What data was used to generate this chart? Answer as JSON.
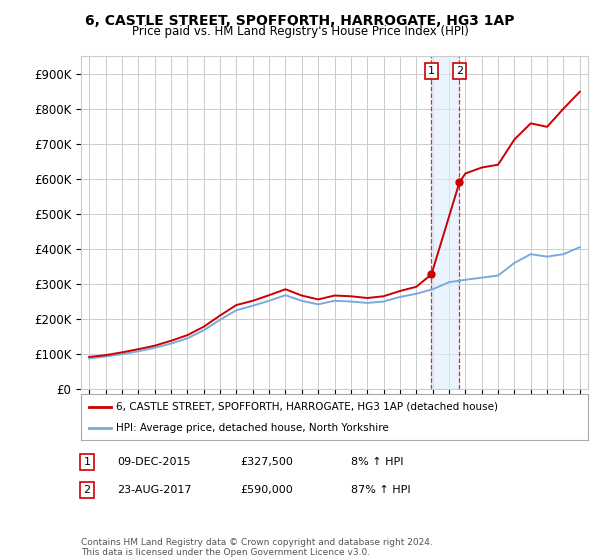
{
  "title": "6, CASTLE STREET, SPOFFORTH, HARROGATE, HG3 1AP",
  "subtitle": "Price paid vs. HM Land Registry's House Price Index (HPI)",
  "ylabel_ticks": [
    "£0",
    "£100K",
    "£200K",
    "£300K",
    "£400K",
    "£500K",
    "£600K",
    "£700K",
    "£800K",
    "£900K"
  ],
  "ytick_values": [
    0,
    100000,
    200000,
    300000,
    400000,
    500000,
    600000,
    700000,
    800000,
    900000
  ],
  "ylim": [
    0,
    950000
  ],
  "xlim_start": 1994.5,
  "xlim_end": 2025.5,
  "legend_line1": "6, CASTLE STREET, SPOFFORTH, HARROGATE, HG3 1AP (detached house)",
  "legend_line2": "HPI: Average price, detached house, North Yorkshire",
  "legend_color1": "#cc0000",
  "legend_color2": "#7aaadd",
  "transaction1_label": "1",
  "transaction1_date": "09-DEC-2015",
  "transaction1_price": "£327,500",
  "transaction1_hpi": "8% ↑ HPI",
  "transaction1_x": 2015.93,
  "transaction1_y": 327500,
  "transaction2_label": "2",
  "transaction2_date": "23-AUG-2017",
  "transaction2_price": "£590,000",
  "transaction2_hpi": "87% ↑ HPI",
  "transaction2_x": 2017.64,
  "transaction2_y": 590000,
  "footer": "Contains HM Land Registry data © Crown copyright and database right 2024.\nThis data is licensed under the Open Government Licence v3.0.",
  "bg_color": "#ffffff",
  "grid_color": "#cccccc",
  "highlight_fill": "#ddeeff",
  "highlight_alpha": 0.6,
  "hpi_years": [
    1995,
    1996,
    1997,
    1998,
    1999,
    2000,
    2001,
    2002,
    2003,
    2004,
    2005,
    2006,
    2007,
    2008,
    2009,
    2010,
    2011,
    2012,
    2013,
    2014,
    2015,
    2016,
    2017,
    2018,
    2019,
    2020,
    2021,
    2022,
    2023,
    2024,
    2025
  ],
  "hpi_values": [
    88000,
    93000,
    100000,
    108000,
    118000,
    130000,
    145000,
    168000,
    198000,
    225000,
    238000,
    252000,
    268000,
    252000,
    242000,
    252000,
    250000,
    246000,
    250000,
    263000,
    272000,
    285000,
    305000,
    312000,
    318000,
    324000,
    360000,
    385000,
    378000,
    385000,
    405000
  ],
  "red_years": [
    1995,
    1996,
    1997,
    1998,
    1999,
    2000,
    2001,
    2002,
    2003,
    2004,
    2005,
    2006,
    2007,
    2008,
    2009,
    2010,
    2011,
    2012,
    2013,
    2014,
    2015,
    2015.93,
    2017.64,
    2018,
    2019,
    2020,
    2021,
    2022,
    2023,
    2024,
    2025
  ],
  "red_values": [
    92000,
    97000,
    105000,
    114000,
    124000,
    138000,
    154000,
    178000,
    210000,
    240000,
    252000,
    268000,
    285000,
    267000,
    256000,
    267000,
    265000,
    260000,
    265000,
    280000,
    292000,
    327500,
    590000,
    615000,
    632000,
    640000,
    712000,
    758000,
    748000,
    800000,
    848000
  ]
}
